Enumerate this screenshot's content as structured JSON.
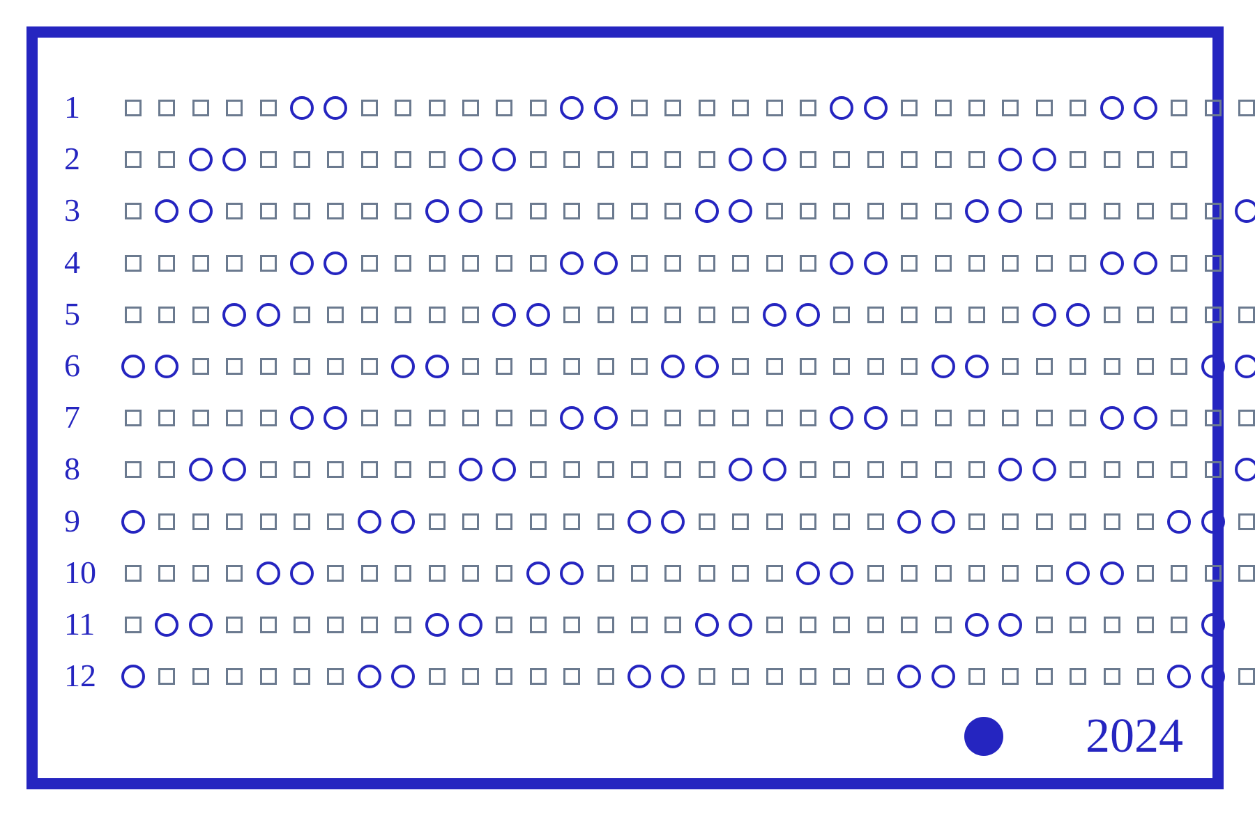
{
  "year": "2024",
  "colors": {
    "frame": "#2525c0",
    "holiday": "#2525c0",
    "workday": "#6b7a8f"
  },
  "legend": {
    "holiday_marker": "filled-circle"
  },
  "months": [
    {
      "label": "1",
      "pattern": "ssssshhsssssshhsssssshhsssssshhsss"
    },
    {
      "label": "2",
      "pattern": "sshhsssssshhsssssshhsssssshhssss"
    },
    {
      "label": "3",
      "pattern": "shhsssssshhsssssshhsssssshhsssssshh"
    },
    {
      "label": "4",
      "pattern": "ssssshhsssssshhsssssshhsssssshhss"
    },
    {
      "label": "5",
      "pattern": "ssshhsssssshhsssssshhsssssshhsssss"
    },
    {
      "label": "6",
      "pattern": "hhsssssshhsssssshhsssssshhsssssshh"
    },
    {
      "label": "7",
      "pattern": "ssssshhsssssshhsssssshhsssssshhsss"
    },
    {
      "label": "8",
      "pattern": "sshhsssssshhsssssshhsssssshhsssssh"
    },
    {
      "label": "9",
      "pattern": "hsssssshhsssssshhsssssshhsssssshhs"
    },
    {
      "label": "10",
      "pattern": "sssshhsssssshhsssssshhsssssshhssss"
    },
    {
      "label": "11",
      "pattern": "shhsssssshhsssssshhsssssshhsssssh"
    },
    {
      "label": "12",
      "pattern": "hsssssshhsssssshhsssssshhsssssshhss"
    }
  ]
}
